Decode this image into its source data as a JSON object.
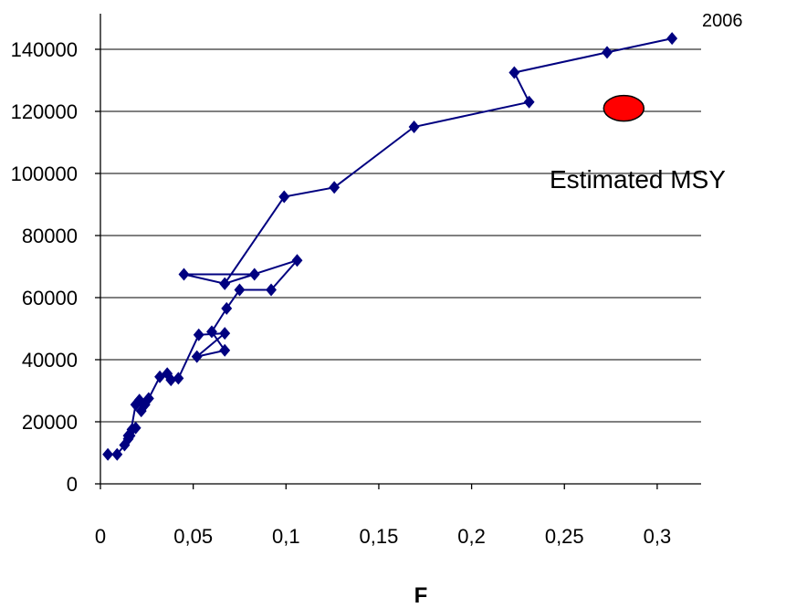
{
  "chart_data": {
    "type": "line",
    "title": "",
    "xlabel": "F",
    "ylabel": "",
    "xlim": [
      0,
      0.3
    ],
    "ylim": [
      0,
      140000
    ],
    "x_ticks": [
      "0",
      "0,05",
      "0,1",
      "0,15",
      "0,2",
      "0,25",
      "0,3"
    ],
    "y_ticks": [
      "0",
      "20000",
      "40000",
      "60000",
      "80000",
      "100000",
      "120000",
      "140000"
    ],
    "grid": "horizontal",
    "series_color": "#000080",
    "marker": "diamond",
    "series": [
      {
        "points": [
          [
            0.004,
            9500
          ],
          [
            0.009,
            9500
          ],
          [
            0.013,
            12500
          ],
          [
            0.015,
            15500
          ],
          [
            0.017,
            17500
          ],
          [
            0.015,
            14500
          ],
          [
            0.019,
            18000
          ],
          [
            0.016,
            15500
          ],
          [
            0.019,
            25500
          ],
          [
            0.021,
            27000
          ],
          [
            0.022,
            23500
          ],
          [
            0.024,
            25500
          ],
          [
            0.026,
            27500
          ],
          [
            0.032,
            34500
          ],
          [
            0.036,
            35500
          ],
          [
            0.038,
            33500
          ],
          [
            0.042,
            34000
          ],
          [
            0.053,
            48000
          ],
          [
            0.067,
            48500
          ],
          [
            0.052,
            41000
          ],
          [
            0.067,
            43000
          ],
          [
            0.06,
            49000
          ],
          [
            0.068,
            56500
          ],
          [
            0.075,
            62500
          ],
          [
            0.092,
            62500
          ],
          [
            0.106,
            72000
          ],
          [
            0.067,
            64500
          ],
          [
            0.045,
            67500
          ],
          [
            0.083,
            67500
          ],
          [
            0.067,
            64500
          ],
          [
            0.099,
            92500
          ],
          [
            0.126,
            95500
          ],
          [
            0.169,
            115000
          ],
          [
            0.231,
            123000
          ],
          [
            0.223,
            132500
          ],
          [
            0.273,
            139000
          ],
          [
            0.308,
            143500
          ]
        ]
      }
    ],
    "annotations": [
      {
        "text": "2006",
        "x": 0.308,
        "y": 143500,
        "placement": "upper-right of last point"
      },
      {
        "text": "Estimated MSY",
        "marker": "red ellipse",
        "x": 0.282,
        "y": 121000,
        "marker_color": "#ff0000"
      }
    ]
  }
}
